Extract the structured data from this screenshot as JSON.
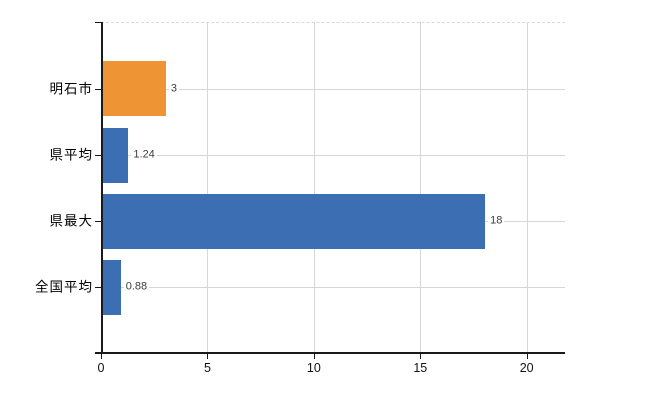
{
  "chart_data": {
    "type": "bar",
    "orientation": "horizontal",
    "title": "",
    "xlabel": "",
    "ylabel": "",
    "categories": [
      "明石市",
      "県平均",
      "県最大",
      "全国平均"
    ],
    "values": [
      3,
      1.24,
      18,
      0.88
    ],
    "value_labels": [
      "3",
      "1.24",
      "18",
      "0.88"
    ],
    "bar_colors": [
      "#ee9434",
      "#3c6eb4",
      "#3c6eb4",
      "#3c6eb4"
    ],
    "x_ticks": [
      0,
      5,
      10,
      15,
      20
    ],
    "x_tick_labels": [
      "0",
      "5",
      "10",
      "15",
      "20"
    ],
    "xlim": [
      0,
      21.8
    ],
    "grid": true,
    "legend": null,
    "colors": {
      "bar_blue": "#3c6eb4",
      "bar_orange": "#ee9434",
      "axis": "#1a1a1a",
      "gridline": "#d6d6d6",
      "top_border_dashed": "#d9d9d9",
      "value_label_text": "#3d3d3d",
      "background": "#ffffff"
    }
  }
}
